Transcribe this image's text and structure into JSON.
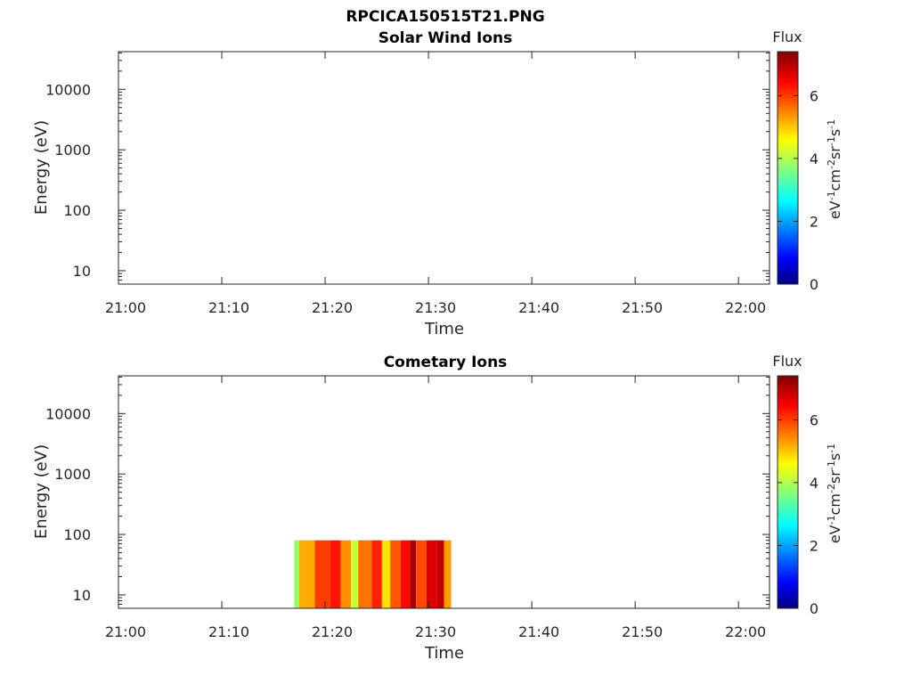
{
  "figure_title": "RPCICA150515T21.PNG",
  "chart_data": [
    {
      "type": "heatmap",
      "title": "Solar Wind Ions",
      "xlabel": "Time",
      "ylabel": "Energy (eV)",
      "x_ticks": [
        "21:00",
        "21:10",
        "21:20",
        "21:30",
        "21:40",
        "21:50",
        "22:00"
      ],
      "x_range_minutes": [
        0,
        63
      ],
      "y_scale": "log",
      "y_ticks": [
        "10",
        "100",
        "1000",
        "10000"
      ],
      "y_range": [
        6,
        42000
      ],
      "colorbar": {
        "title": "Flux",
        "label": "eV-1cm-2sr-1s-1",
        "ticks": [
          "0",
          "2",
          "4",
          "6"
        ],
        "range": [
          0,
          7.4
        ],
        "colormap": "jet"
      },
      "data_segments": []
    },
    {
      "type": "heatmap",
      "title": "Cometary Ions",
      "xlabel": "Time",
      "ylabel": "Energy (eV)",
      "x_ticks": [
        "21:00",
        "21:10",
        "21:20",
        "21:30",
        "21:40",
        "21:50",
        "22:00"
      ],
      "x_range_minutes": [
        0,
        63
      ],
      "y_scale": "log",
      "y_ticks": [
        "10",
        "100",
        "1000",
        "10000"
      ],
      "y_range": [
        6,
        42000
      ],
      "colorbar": {
        "title": "Flux",
        "label": "eV-1cm-2sr-1s-1",
        "ticks": [
          "0",
          "2",
          "4",
          "6"
        ],
        "range": [
          0,
          7.4
        ],
        "colormap": "jet"
      },
      "data_segments": [
        {
          "t_start_min": 17.0,
          "t_end_min": 17.5,
          "e_max": 80,
          "flux": 3.8
        },
        {
          "t_start_min": 17.5,
          "t_end_min": 19.0,
          "e_max": 80,
          "flux": 5.2
        },
        {
          "t_start_min": 19.0,
          "t_end_min": 20.5,
          "e_max": 80,
          "flux": 6.0
        },
        {
          "t_start_min": 20.5,
          "t_end_min": 21.5,
          "e_max": 80,
          "flux": 6.3
        },
        {
          "t_start_min": 21.5,
          "t_end_min": 22.5,
          "e_max": 80,
          "flux": 5.4
        },
        {
          "t_start_min": 22.5,
          "t_end_min": 23.2,
          "e_max": 80,
          "flux": 4.2
        },
        {
          "t_start_min": 23.2,
          "t_end_min": 24.5,
          "e_max": 80,
          "flux": 5.6
        },
        {
          "t_start_min": 24.5,
          "t_end_min": 25.5,
          "e_max": 80,
          "flux": 6.2
        },
        {
          "t_start_min": 25.5,
          "t_end_min": 26.3,
          "e_max": 80,
          "flux": 4.8
        },
        {
          "t_start_min": 26.3,
          "t_end_min": 27.3,
          "e_max": 80,
          "flux": 5.8
        },
        {
          "t_start_min": 27.3,
          "t_end_min": 28.2,
          "e_max": 80,
          "flux": 6.4
        },
        {
          "t_start_min": 28.2,
          "t_end_min": 28.8,
          "e_max": 80,
          "flux": 7.1
        },
        {
          "t_start_min": 28.8,
          "t_end_min": 29.8,
          "e_max": 80,
          "flux": 5.9
        },
        {
          "t_start_min": 29.8,
          "t_end_min": 30.8,
          "e_max": 80,
          "flux": 6.7
        },
        {
          "t_start_min": 30.8,
          "t_end_min": 31.5,
          "e_max": 80,
          "flux": 6.9
        },
        {
          "t_start_min": 31.5,
          "t_end_min": 32.2,
          "e_max": 80,
          "flux": 5.3
        }
      ]
    }
  ]
}
